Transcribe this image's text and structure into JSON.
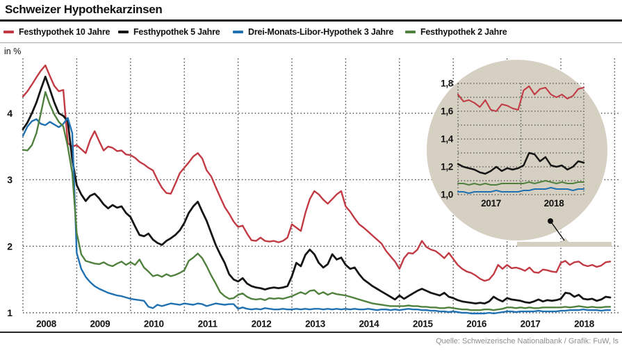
{
  "title": "Schweizer Hypothekarzinsen",
  "unit_label": "in %",
  "source": "Quelle: Schweizerische Nationalbank / Grafik: FuW, ls",
  "legend": [
    {
      "label": "Festhypothek 10 Jahre",
      "color": "#c23a44"
    },
    {
      "label": "Festhypothek 5 Jahre",
      "color": "#161616"
    },
    {
      "label": "Drei-Monats-Libor-Hypothek 3 Jahre",
      "color": "#2071b2"
    },
    {
      "label": "Festhypothek 2 Jahre",
      "color": "#51813f"
    }
  ],
  "chart_data": {
    "type": "line",
    "title": "Schweizer Hypothekarzinsen",
    "ylabel": "in %",
    "x_start": "2008-01",
    "x_end": "2018-12",
    "x_step": "month",
    "categories": [
      "2008",
      "2009",
      "2010",
      "2011",
      "2012",
      "2013",
      "2014",
      "2015",
      "2016",
      "2017",
      "2018"
    ],
    "y_ticks": [
      4,
      3,
      2,
      1
    ],
    "ylim": [
      1,
      4.85
    ],
    "grid": "dotted",
    "legend_position": "top",
    "series": [
      {
        "name": "Festhypothek 10 Jahre",
        "color": "#c23a44",
        "values": [
          4.25,
          4.33,
          4.43,
          4.54,
          4.64,
          4.72,
          4.56,
          4.41,
          4.33,
          4.35,
          3.55,
          3.5,
          3.52,
          3.46,
          3.4,
          3.6,
          3.73,
          3.58,
          3.44,
          3.5,
          3.48,
          3.43,
          3.44,
          3.38,
          3.37,
          3.33,
          3.27,
          3.23,
          3.18,
          3.14,
          3.0,
          2.88,
          2.8,
          2.79,
          2.94,
          3.1,
          3.18,
          3.26,
          3.35,
          3.4,
          3.32,
          3.14,
          3.05,
          2.89,
          2.74,
          2.59,
          2.49,
          2.37,
          2.29,
          2.31,
          2.19,
          2.09,
          2.08,
          2.13,
          2.08,
          2.07,
          2.08,
          2.06,
          2.08,
          2.13,
          2.33,
          2.28,
          2.23,
          2.5,
          2.71,
          2.83,
          2.78,
          2.7,
          2.64,
          2.71,
          2.78,
          2.83,
          2.6,
          2.52,
          2.42,
          2.33,
          2.28,
          2.22,
          2.16,
          2.1,
          2.04,
          1.93,
          1.85,
          1.77,
          1.66,
          1.82,
          1.9,
          1.89,
          1.95,
          2.08,
          1.99,
          1.95,
          1.93,
          1.88,
          1.82,
          1.9,
          1.81,
          1.72,
          1.66,
          1.62,
          1.6,
          1.56,
          1.51,
          1.48,
          1.5,
          1.58,
          1.72,
          1.66,
          1.72,
          1.67,
          1.68,
          1.66,
          1.63,
          1.68,
          1.61,
          1.6,
          1.65,
          1.64,
          1.62,
          1.61,
          1.75,
          1.78,
          1.72,
          1.76,
          1.77,
          1.72,
          1.7,
          1.72,
          1.69,
          1.71,
          1.76,
          1.77
        ]
      },
      {
        "name": "Festhypothek 5 Jahre",
        "color": "#161616",
        "values": [
          3.76,
          3.86,
          4.0,
          4.16,
          4.36,
          4.55,
          4.36,
          4.16,
          4.0,
          3.96,
          3.88,
          3.3,
          2.92,
          2.78,
          2.68,
          2.76,
          2.79,
          2.72,
          2.63,
          2.57,
          2.62,
          2.58,
          2.6,
          2.5,
          2.44,
          2.3,
          2.17,
          2.15,
          2.19,
          2.1,
          2.05,
          2.02,
          2.08,
          2.12,
          2.17,
          2.24,
          2.35,
          2.5,
          2.6,
          2.67,
          2.52,
          2.38,
          2.2,
          2.02,
          1.88,
          1.75,
          1.58,
          1.5,
          1.47,
          1.52,
          1.44,
          1.4,
          1.38,
          1.37,
          1.35,
          1.37,
          1.38,
          1.37,
          1.38,
          1.4,
          1.55,
          1.75,
          1.7,
          1.87,
          1.95,
          1.88,
          1.75,
          1.68,
          1.73,
          1.88,
          1.8,
          1.83,
          1.72,
          1.66,
          1.68,
          1.58,
          1.5,
          1.45,
          1.4,
          1.36,
          1.32,
          1.28,
          1.24,
          1.2,
          1.26,
          1.21,
          1.25,
          1.29,
          1.33,
          1.36,
          1.33,
          1.3,
          1.28,
          1.26,
          1.3,
          1.24,
          1.22,
          1.19,
          1.17,
          1.16,
          1.15,
          1.14,
          1.15,
          1.14,
          1.17,
          1.24,
          1.2,
          1.17,
          1.22,
          1.2,
          1.19,
          1.18,
          1.16,
          1.15,
          1.17,
          1.2,
          1.17,
          1.19,
          1.18,
          1.19,
          1.21,
          1.3,
          1.29,
          1.24,
          1.27,
          1.21,
          1.2,
          1.21,
          1.18,
          1.2,
          1.24,
          1.23
        ]
      },
      {
        "name": "Drei-Monats-Libor-Hypothek 3 Jahre",
        "color": "#2071b2",
        "values": [
          3.66,
          3.8,
          3.88,
          3.91,
          3.84,
          3.82,
          3.87,
          3.83,
          3.79,
          3.84,
          3.93,
          3.7,
          1.9,
          1.66,
          1.54,
          1.46,
          1.4,
          1.36,
          1.33,
          1.3,
          1.28,
          1.26,
          1.25,
          1.23,
          1.21,
          1.2,
          1.19,
          1.18,
          1.09,
          1.07,
          1.12,
          1.1,
          1.12,
          1.14,
          1.13,
          1.12,
          1.14,
          1.13,
          1.12,
          1.14,
          1.13,
          1.1,
          1.12,
          1.14,
          1.13,
          1.12,
          1.13,
          1.13,
          1.06,
          1.08,
          1.06,
          1.05,
          1.06,
          1.05,
          1.07,
          1.06,
          1.05,
          1.05,
          1.06,
          1.05,
          1.05,
          1.06,
          1.05,
          1.06,
          1.05,
          1.06,
          1.06,
          1.05,
          1.06,
          1.05,
          1.06,
          1.05,
          1.06,
          1.05,
          1.06,
          1.05,
          1.05,
          1.06,
          1.05,
          1.04,
          1.05,
          1.05,
          1.04,
          1.05,
          1.04,
          1.05,
          1.06,
          1.05,
          1.05,
          1.04,
          1.04,
          1.03,
          1.03,
          1.02,
          1.02,
          1.01,
          1.02,
          1.01,
          1.0,
          1.0,
          0.99,
          0.99,
          0.99,
          0.99,
          1.0,
          0.99,
          1.0,
          1.01,
          1.02,
          1.02,
          1.01,
          1.02,
          1.02,
          1.02,
          1.02,
          1.03,
          1.02,
          1.02,
          1.02,
          1.02,
          1.03,
          1.03,
          1.04,
          1.04,
          1.04,
          1.05,
          1.04,
          1.04,
          1.04,
          1.03,
          1.04,
          1.04
        ]
      },
      {
        "name": "Festhypothek 2 Jahre",
        "color": "#51813f",
        "values": [
          3.45,
          3.44,
          3.52,
          3.7,
          4.0,
          4.32,
          4.13,
          3.98,
          3.87,
          3.8,
          3.5,
          3.1,
          2.2,
          1.88,
          1.78,
          1.76,
          1.74,
          1.73,
          1.76,
          1.72,
          1.7,
          1.74,
          1.77,
          1.72,
          1.76,
          1.72,
          1.8,
          1.68,
          1.62,
          1.55,
          1.57,
          1.54,
          1.58,
          1.55,
          1.57,
          1.6,
          1.64,
          1.78,
          1.83,
          1.89,
          1.82,
          1.7,
          1.56,
          1.44,
          1.31,
          1.25,
          1.21,
          1.22,
          1.27,
          1.29,
          1.24,
          1.21,
          1.2,
          1.21,
          1.19,
          1.22,
          1.21,
          1.22,
          1.21,
          1.23,
          1.25,
          1.28,
          1.31,
          1.28,
          1.33,
          1.34,
          1.28,
          1.31,
          1.27,
          1.3,
          1.28,
          1.27,
          1.26,
          1.24,
          1.22,
          1.2,
          1.18,
          1.16,
          1.14,
          1.13,
          1.12,
          1.11,
          1.1,
          1.1,
          1.1,
          1.1,
          1.11,
          1.1,
          1.1,
          1.09,
          1.09,
          1.08,
          1.08,
          1.07,
          1.07,
          1.08,
          1.07,
          1.06,
          1.05,
          1.05,
          1.04,
          1.04,
          1.04,
          1.05,
          1.05,
          1.04,
          1.05,
          1.06,
          1.08,
          1.08,
          1.07,
          1.08,
          1.07,
          1.08,
          1.07,
          1.07,
          1.08,
          1.08,
          1.08,
          1.08,
          1.08,
          1.09,
          1.08,
          1.09,
          1.1,
          1.09,
          1.08,
          1.09,
          1.08,
          1.08,
          1.09,
          1.09
        ]
      }
    ],
    "inset": {
      "shape": "magnifier-circle",
      "bg_color": "#d5d0c2",
      "x_range": [
        "2017",
        "2018"
      ],
      "start_index": 108,
      "ylim": [
        1.0,
        1.8
      ],
      "y_ticks": [
        "1,8",
        "1,6",
        "1,4",
        "1,2",
        "1,0"
      ],
      "y_tick_values": [
        1.8,
        1.6,
        1.4,
        1.2,
        1.0
      ],
      "x_labels": [
        "2017",
        "2018"
      ]
    }
  }
}
